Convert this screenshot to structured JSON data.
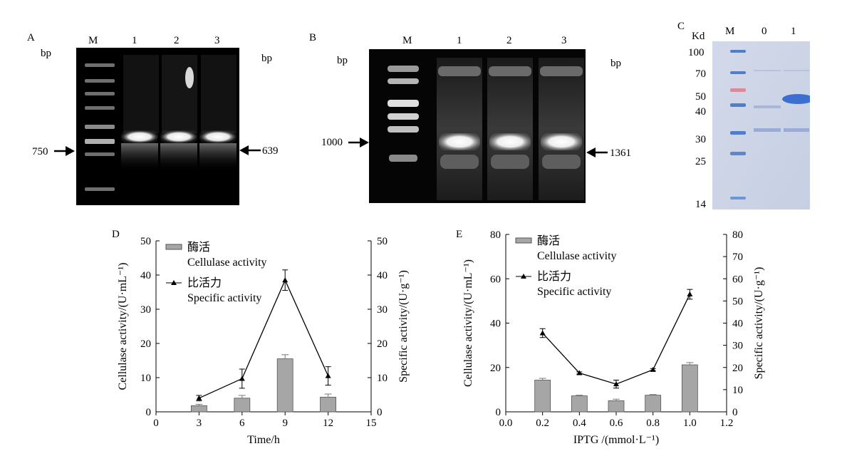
{
  "panelA": {
    "letter": "A",
    "bp_left": "bp",
    "bp_right": "bp",
    "lanes": [
      "M",
      "1",
      "2",
      "3"
    ],
    "marker_label": "750",
    "product_label": "639"
  },
  "panelB": {
    "letter": "B",
    "bp_left": "bp",
    "bp_right": "bp",
    "lanes": [
      "M",
      "1",
      "2",
      "3"
    ],
    "marker_label": "1000",
    "product_label": "1361"
  },
  "panelC": {
    "letter": "C",
    "unit": "Kd",
    "lanes": [
      "M",
      "0",
      "1"
    ],
    "markers": [
      "100",
      "70",
      "50",
      "40",
      "30",
      "25",
      "14"
    ]
  },
  "colors": {
    "bar_fill": "#a6a6a6",
    "line": "#000000",
    "gel_bg": "#000000",
    "sds_bg": "#cdd4e6",
    "marker_blue": "#4f7fc8",
    "marker_red": "#d88c9a",
    "band_blue": "#3d6fd0"
  },
  "chart_data": [
    {
      "panel": "D",
      "type": "bar",
      "xlabel": "Time/h",
      "ylabel_left": "Cellulase activity/(U·mL⁻¹)",
      "ylabel_right": "Specific activity/(U·g⁻¹)",
      "xlim": [
        0,
        15
      ],
      "xticks": [
        "0",
        "3",
        "6",
        "9",
        "12",
        "15"
      ],
      "ylim_left": [
        0,
        50
      ],
      "yticks_left": [
        "0",
        "10",
        "20",
        "30",
        "40",
        "50"
      ],
      "ylim_right": [
        0,
        50
      ],
      "yticks_right": [
        "0",
        "10",
        "20",
        "30",
        "40",
        "50"
      ],
      "legend": {
        "bar_cn": "酶活",
        "bar_en": "Cellulase activity",
        "line_cn": "比活力",
        "line_en": "Specific activity",
        "position": "top-left"
      },
      "x": [
        3,
        6,
        9,
        12
      ],
      "series": [
        {
          "axis": "left",
          "kind": "bar",
          "values": [
            1.8,
            4.0,
            15.5,
            4.3
          ],
          "errors": [
            0.4,
            0.8,
            1.2,
            0.9
          ]
        },
        {
          "axis": "right",
          "kind": "line",
          "values": [
            4.0,
            9.7,
            38.5,
            10.5
          ],
          "errors": [
            0.8,
            2.8,
            3.0,
            2.7
          ]
        }
      ]
    },
    {
      "panel": "E",
      "type": "bar",
      "xlabel": "IPTG /(mmol·L⁻¹)",
      "ylabel_left": "Cellulase activity/(U·mL⁻¹)",
      "ylabel_right": "Specific activity/(U·g⁻¹)",
      "xlim": [
        0,
        1.2
      ],
      "xticks": [
        "0.0",
        "0.2",
        "0.4",
        "0.6",
        "0.8",
        "1.0",
        "1.2"
      ],
      "ylim_left": [
        0,
        80
      ],
      "yticks_left": [
        "0",
        "20",
        "40",
        "60",
        "80"
      ],
      "ylim_right": [
        0,
        80
      ],
      "yticks_right": [
        "0",
        "10",
        "20",
        "30",
        "40",
        "50",
        "60",
        "70",
        "80"
      ],
      "legend": {
        "bar_cn": "酶活",
        "bar_en": "Cellulase activity",
        "line_cn": "比活力",
        "line_en": "Specific activity",
        "position": "top-left"
      },
      "x": [
        0.2,
        0.4,
        0.6,
        0.8,
        1.0
      ],
      "series": [
        {
          "axis": "left",
          "kind": "bar",
          "values": [
            14.3,
            7.2,
            5.0,
            7.5,
            21.2
          ],
          "errors": [
            0.8,
            0.3,
            0.7,
            0.3,
            1.0
          ]
        },
        {
          "axis": "right",
          "kind": "line",
          "values": [
            35.5,
            17.5,
            12.5,
            19.0,
            53.0
          ],
          "errors": [
            2.0,
            0.5,
            1.8,
            0.5,
            2.2
          ]
        }
      ]
    }
  ]
}
